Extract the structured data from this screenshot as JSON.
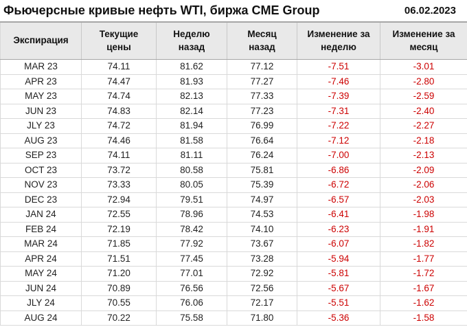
{
  "header": {
    "title": "Фьючерсные кривые нефть WTI, биржа CME Group",
    "date": "06.02.2023"
  },
  "colors": {
    "negative": "#cc0000",
    "header_bg": "#e9e9e9",
    "border_dark": "#a6a6a6",
    "border_mid": "#c8c8c8",
    "border_light": "#d9d9d9"
  },
  "chart_data": {
    "type": "table",
    "title": "Фьючерсные кривые нефть WTI, биржа CME Group",
    "date_label": "06.02.2023",
    "columns": [
      "Экспирация",
      "Текущие\nцены",
      "Неделю\nназад",
      "Месяц\nназад",
      "Изменение за\nнеделю",
      "Изменение за\nмесяц"
    ],
    "negative_columns": [
      4,
      5
    ],
    "rows": [
      [
        "MAR 23",
        "74.11",
        "81.62",
        "77.12",
        "-7.51",
        "-3.01"
      ],
      [
        "APR 23",
        "74.47",
        "81.93",
        "77.27",
        "-7.46",
        "-2.80"
      ],
      [
        "MAY 23",
        "74.74",
        "82.13",
        "77.33",
        "-7.39",
        "-2.59"
      ],
      [
        "JUN 23",
        "74.83",
        "82.14",
        "77.23",
        "-7.31",
        "-2.40"
      ],
      [
        "JLY 23",
        "74.72",
        "81.94",
        "76.99",
        "-7.22",
        "-2.27"
      ],
      [
        "AUG 23",
        "74.46",
        "81.58",
        "76.64",
        "-7.12",
        "-2.18"
      ],
      [
        "SEP 23",
        "74.11",
        "81.11",
        "76.24",
        "-7.00",
        "-2.13"
      ],
      [
        "OCT 23",
        "73.72",
        "80.58",
        "75.81",
        "-6.86",
        "-2.09"
      ],
      [
        "NOV 23",
        "73.33",
        "80.05",
        "75.39",
        "-6.72",
        "-2.06"
      ],
      [
        "DEC 23",
        "72.94",
        "79.51",
        "74.97",
        "-6.57",
        "-2.03"
      ],
      [
        "JAN 24",
        "72.55",
        "78.96",
        "74.53",
        "-6.41",
        "-1.98"
      ],
      [
        "FEB 24",
        "72.19",
        "78.42",
        "74.10",
        "-6.23",
        "-1.91"
      ],
      [
        "MAR 24",
        "71.85",
        "77.92",
        "73.67",
        "-6.07",
        "-1.82"
      ],
      [
        "APR 24",
        "71.51",
        "77.45",
        "73.28",
        "-5.94",
        "-1.77"
      ],
      [
        "MAY 24",
        "71.20",
        "77.01",
        "72.92",
        "-5.81",
        "-1.72"
      ],
      [
        "JUN 24",
        "70.89",
        "76.56",
        "72.56",
        "-5.67",
        "-1.67"
      ],
      [
        "JLY 24",
        "70.55",
        "76.06",
        "72.17",
        "-5.51",
        "-1.62"
      ],
      [
        "AUG 24",
        "70.22",
        "75.58",
        "71.80",
        "-5.36",
        "-1.58"
      ]
    ]
  }
}
